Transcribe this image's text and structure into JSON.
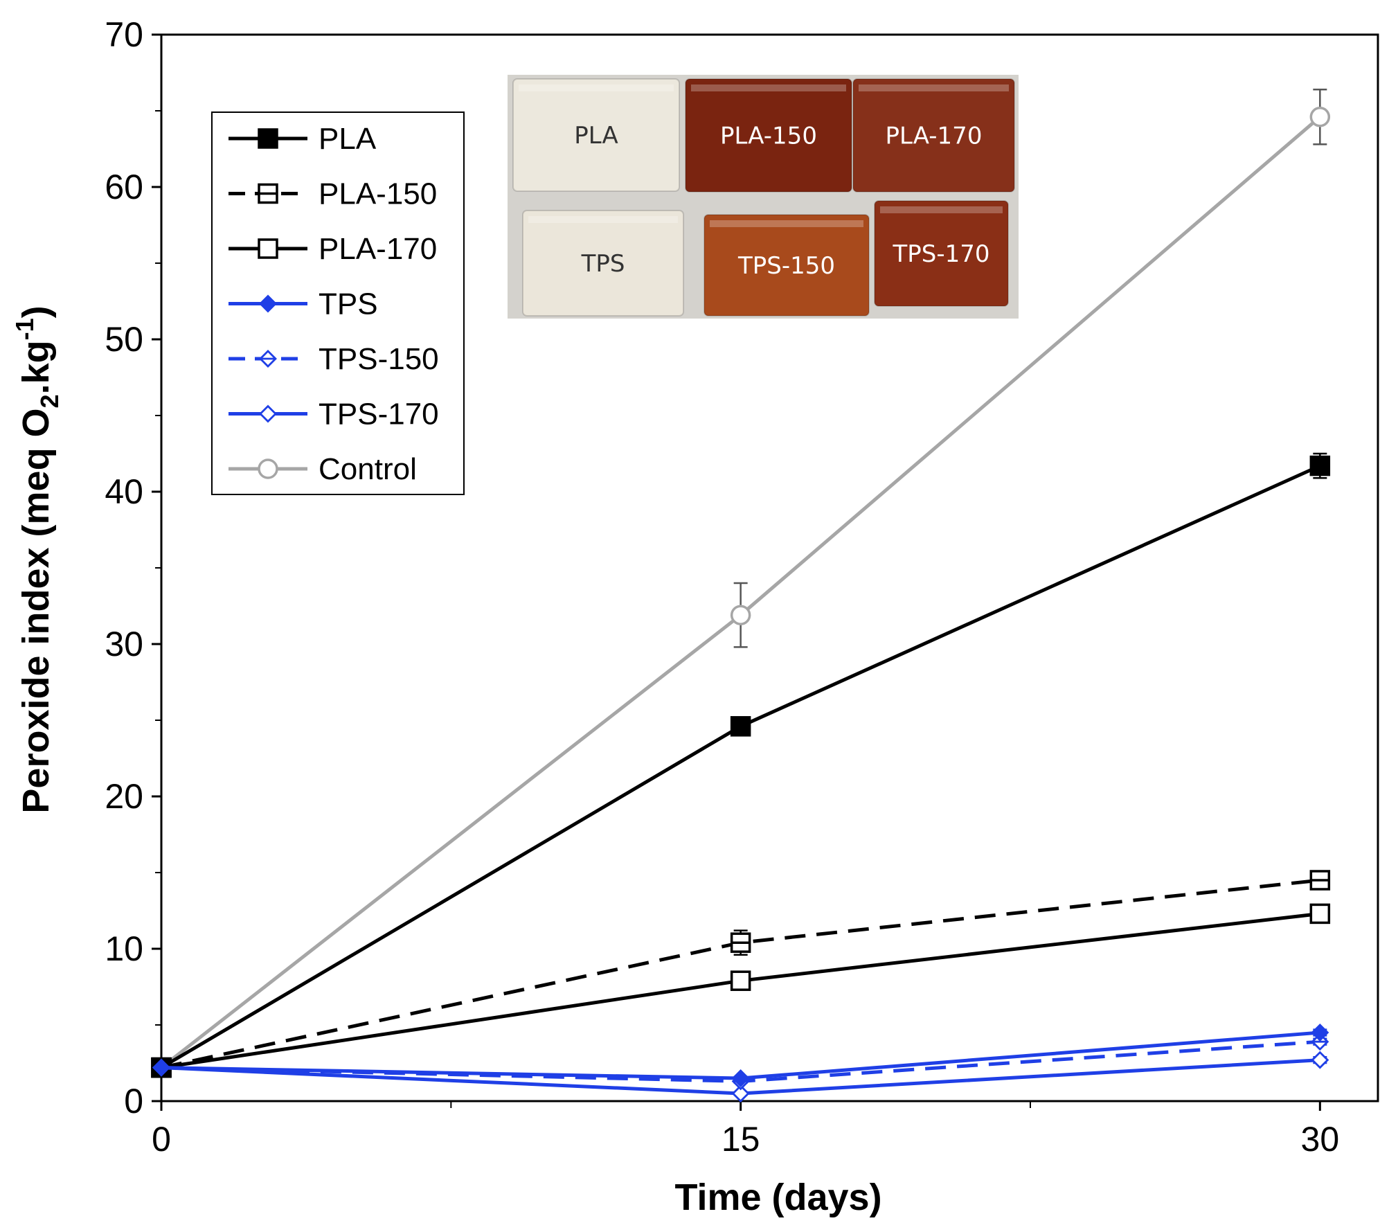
{
  "chart_data": {
    "type": "line",
    "xlabel": "Time (days)",
    "ylabel_parts": {
      "main": "Peroxide index (meq O",
      "sub": "2",
      "mid": ".kg",
      "sup": "-1",
      "end": ")"
    },
    "x_ticks": [
      0,
      15,
      30
    ],
    "y_ticks": [
      0,
      10,
      20,
      30,
      40,
      50,
      60,
      70
    ],
    "xlim": [
      0,
      31.5
    ],
    "ylim": [
      0,
      70
    ],
    "grid": false,
    "legend_position": "top-left",
    "series": [
      {
        "name": "PLA",
        "x": [
          0,
          15,
          30
        ],
        "y": [
          2.2,
          24.6,
          41.7
        ],
        "err": [
          0,
          0.4,
          0.8
        ],
        "color": "#000000",
        "dash": "solid",
        "marker": "square-filled"
      },
      {
        "name": "PLA-150",
        "x": [
          0,
          15,
          30
        ],
        "y": [
          2.2,
          10.4,
          14.5
        ],
        "err": [
          0,
          0.8,
          0.4
        ],
        "color": "#000000",
        "dash": "dashed",
        "marker": "square-open-bar"
      },
      {
        "name": "PLA-170",
        "x": [
          0,
          15,
          30
        ],
        "y": [
          2.2,
          7.9,
          12.3
        ],
        "err": [
          0,
          0.4,
          0.3
        ],
        "color": "#000000",
        "dash": "solid",
        "marker": "square-open"
      },
      {
        "name": "TPS",
        "x": [
          0,
          15,
          30
        ],
        "y": [
          2.2,
          1.5,
          4.5
        ],
        "err": [
          0,
          0.1,
          0.2
        ],
        "color": "#1f3fe6",
        "dash": "solid",
        "marker": "diamond-filled"
      },
      {
        "name": "TPS-150",
        "x": [
          0,
          15,
          30
        ],
        "y": [
          2.2,
          1.3,
          3.9
        ],
        "err": [
          0,
          0.1,
          0.2
        ],
        "color": "#1f3fe6",
        "dash": "dashed",
        "marker": "diamond-open-bar"
      },
      {
        "name": "TPS-170",
        "x": [
          0,
          15,
          30
        ],
        "y": [
          2.2,
          0.5,
          2.7
        ],
        "err": [
          0,
          0.1,
          0.2
        ],
        "color": "#1f3fe6",
        "dash": "solid",
        "marker": "diamond-open"
      },
      {
        "name": "Control",
        "x": [
          0,
          15,
          30
        ],
        "y": [
          2.2,
          31.9,
          64.6
        ],
        "err": [
          0,
          2.1,
          1.8
        ],
        "color": "#a6a6a6",
        "dash": "solid",
        "marker": "circle-open"
      }
    ]
  },
  "inset_photo": {
    "labels": [
      "PLA",
      "PLA-150",
      "PLA-170",
      "TPS",
      "TPS-150",
      "TPS-170"
    ]
  }
}
